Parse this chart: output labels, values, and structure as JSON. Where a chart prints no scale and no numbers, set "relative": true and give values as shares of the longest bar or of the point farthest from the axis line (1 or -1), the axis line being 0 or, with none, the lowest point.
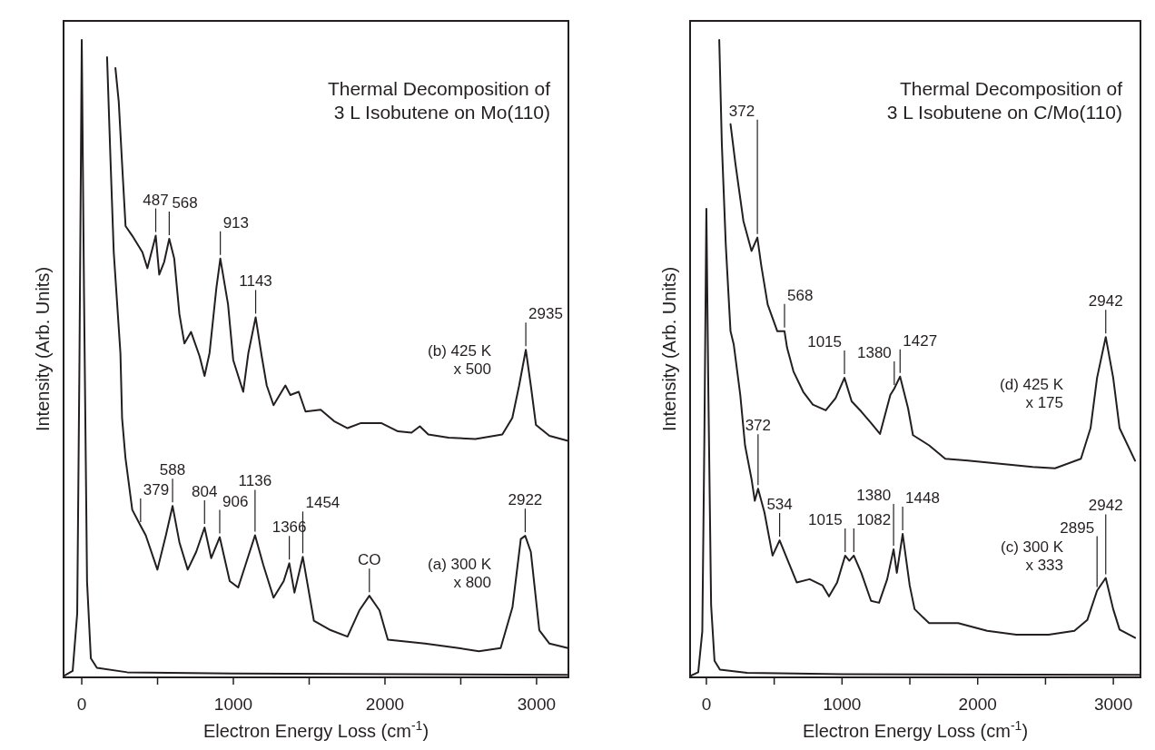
{
  "chart_data": [
    {
      "type": "line",
      "relative": true,
      "title": "Thermal Decomposition of\n3 L Isobutene on Mo(110)",
      "xlabel": "Electron Energy Loss (cm$^{-1}$)",
      "ylabel": "Intensity (Arb. Units)",
      "xlim": [
        -120,
        3210
      ],
      "xticks": [
        0,
        {
          "value": 500,
          "label": null
        },
        1000,
        {
          "value": 1500,
          "label": null
        },
        2000,
        {
          "value": 2500,
          "label": null
        },
        3000
      ],
      "series": [
        {
          "color": "#231f20",
          "x": [
            -120,
            -60,
            -30,
            -15,
            0,
            15,
            35,
            60,
            100,
            300,
            1000,
            3200
          ],
          "values": [
            0.002,
            0.01,
            0.1,
            0.5,
            1,
            0.6,
            0.15,
            0.03,
            0.015,
            0.008,
            0.006,
            0.004
          ]
        },
        {
          "name": "(a) 300 K\nx 800",
          "color": "#231f20",
          "x": [
            167,
            189,
            211,
            255,
            266,
            288,
            333,
            388,
            422,
            499,
            555,
            599,
            644,
            699,
            755,
            810,
            854,
            910,
            976,
            1032,
            1143,
            1198,
            1265,
            1332,
            1369,
            1403,
            1458,
            1531,
            1642,
            1753,
            1831,
            1897,
            1964,
            2019,
            2264,
            2486,
            2619,
            2763,
            2841,
            2896,
            2925,
            2962,
            3018,
            3085,
            3207
          ],
          "values": [
            0.973,
            0.816,
            0.667,
            0.509,
            0.407,
            0.345,
            0.263,
            0.238,
            0.223,
            0.169,
            0.223,
            0.269,
            0.212,
            0.169,
            0.197,
            0.235,
            0.187,
            0.22,
            0.151,
            0.141,
            0.223,
            0.176,
            0.125,
            0.151,
            0.179,
            0.133,
            0.189,
            0.089,
            0.074,
            0.064,
            0.105,
            0.128,
            0.105,
            0.059,
            0.053,
            0.046,
            0.041,
            0.046,
            0.11,
            0.217,
            0.222,
            0.197,
            0.074,
            0.053,
            0.046
          ]
        },
        {
          "name": "(b) 425 K\nx 500",
          "color": "#231f20",
          "x": [
            222,
            244,
            266,
            289,
            333,
            400,
            433,
            488,
            511,
            544,
            577,
            610,
            644,
            677,
            721,
            777,
            810,
            843,
            888,
            914,
            965,
            999,
            1065,
            1099,
            1147,
            1187,
            1220,
            1265,
            1343,
            1376,
            1431,
            1476,
            1576,
            1664,
            1753,
            1842,
            1975,
            2086,
            2175,
            2230,
            2286,
            2419,
            2596,
            2774,
            2840,
            2885,
            2929,
            2962,
            2996,
            3085,
            3207
          ],
          "values": [
            0.956,
            0.903,
            0.806,
            0.708,
            0.693,
            0.667,
            0.642,
            0.693,
            0.632,
            0.652,
            0.688,
            0.657,
            0.57,
            0.524,
            0.542,
            0.504,
            0.473,
            0.509,
            0.611,
            0.657,
            0.585,
            0.498,
            0.448,
            0.509,
            0.565,
            0.504,
            0.458,
            0.427,
            0.458,
            0.443,
            0.448,
            0.417,
            0.42,
            0.402,
            0.391,
            0.399,
            0.399,
            0.386,
            0.384,
            0.394,
            0.381,
            0.376,
            0.374,
            0.381,
            0.407,
            0.458,
            0.514,
            0.458,
            0.396,
            0.379,
            0.371
          ]
        }
      ],
      "annotations": [
        {
          "text": "487",
          "x": 488,
          "y": 0.693
        },
        {
          "text": "568",
          "x": 577,
          "y": 0.688
        },
        {
          "text": "913",
          "x": 914,
          "y": 0.657
        },
        {
          "text": "1143",
          "x": 1147,
          "y": 0.565
        },
        {
          "text": "2935",
          "x": 2929,
          "y": 0.514
        },
        {
          "text": "379",
          "x": 388,
          "y": 0.238
        },
        {
          "text": "588",
          "x": 599,
          "y": 0.269
        },
        {
          "text": "804",
          "x": 810,
          "y": 0.235
        },
        {
          "text": "906",
          "x": 910,
          "y": 0.22
        },
        {
          "text": "1136",
          "x": 1143,
          "y": 0.223
        },
        {
          "text": "1366",
          "x": 1369,
          "y": 0.179
        },
        {
          "text": "1454",
          "x": 1458,
          "y": 0.189
        },
        {
          "text": "CO",
          "x": 1897,
          "y": 0.128
        },
        {
          "text": "2922",
          "x": 2925,
          "y": 0.222
        }
      ]
    },
    {
      "type": "line",
      "relative": true,
      "title": "Thermal Decomposition of\n3 L Isobutene on C/Mo(110)",
      "xlabel": "Electron Energy Loss (cm$^{-1}$)",
      "ylabel": "Intensity (Arb. Units)",
      "xlim": [
        -120,
        3200
      ],
      "xticks": [
        0,
        {
          "value": 500,
          "label": null
        },
        1000,
        {
          "value": 1500,
          "label": null
        },
        2000,
        {
          "value": 2500,
          "label": null
        },
        3000
      ],
      "series": [
        {
          "color": "#231f20",
          "x": [
            -120,
            -60,
            -30,
            -15,
            0,
            15,
            35,
            60,
            100,
            300,
            1000,
            3200
          ],
          "values": [
            0.002,
            0.008,
            0.072,
            0.37,
            0.735,
            0.442,
            0.113,
            0.026,
            0.012,
            0.007,
            0.005,
            0.004
          ]
        },
        {
          "name": "(c) 300 K\nx 333",
          "color": "#231f20",
          "x": [
            95,
            114,
            143,
            178,
            202,
            250,
            285,
            333,
            357,
            381,
            428,
            488,
            540,
            595,
            666,
            761,
            857,
            904,
            964,
            1023,
            1054,
            1087,
            1142,
            1214,
            1273,
            1333,
            1380,
            1404,
            1447,
            1499,
            1535,
            1642,
            1856,
            2070,
            2285,
            2523,
            2713,
            2808,
            2880,
            2944,
            2999,
            3046,
            3160
          ],
          "values": [
            1,
            0.837,
            0.679,
            0.543,
            0.522,
            0.443,
            0.364,
            0.311,
            0.277,
            0.296,
            0.259,
            0.191,
            0.215,
            0.186,
            0.149,
            0.154,
            0.144,
            0.127,
            0.149,
            0.191,
            0.183,
            0.191,
            0.164,
            0.12,
            0.117,
            0.154,
            0.201,
            0.164,
            0.225,
            0.144,
            0.107,
            0.085,
            0.085,
            0.073,
            0.067,
            0.067,
            0.073,
            0.09,
            0.136,
            0.156,
            0.107,
            0.075,
            0.062
          ]
        },
        {
          "name": "(d) 425 K\nx 175",
          "color": "#231f20",
          "x": [
            178,
            214,
            273,
            333,
            376,
            404,
            452,
            523,
            576,
            595,
            642,
            714,
            785,
            880,
            952,
            1018,
            1071,
            1142,
            1214,
            1280,
            1356,
            1385,
            1428,
            1487,
            1523,
            1642,
            1761,
            1928,
            2166,
            2404,
            2570,
            2761,
            2832,
            2880,
            2944,
            2999,
            3046,
            3160
          ],
          "values": [
            0.868,
            0.806,
            0.716,
            0.669,
            0.69,
            0.647,
            0.585,
            0.543,
            0.543,
            0.517,
            0.48,
            0.448,
            0.428,
            0.419,
            0.438,
            0.47,
            0.433,
            0.417,
            0.399,
            0.382,
            0.443,
            0.453,
            0.472,
            0.422,
            0.38,
            0.364,
            0.343,
            0.34,
            0.335,
            0.33,
            0.328,
            0.343,
            0.391,
            0.47,
            0.534,
            0.47,
            0.391,
            0.34
          ]
        }
      ],
      "annotations": [
        {
          "text": "372",
          "x": 376,
          "y": 0.69
        },
        {
          "text": "568",
          "x": 576,
          "y": 0.543
        },
        {
          "text": "1015",
          "x": 1018,
          "y": 0.47
        },
        {
          "text": "1380",
          "x": 1385,
          "y": 0.453
        },
        {
          "text": "1427",
          "x": 1428,
          "y": 0.472
        },
        {
          "text": "2942",
          "x": 2944,
          "y": 0.534
        },
        {
          "text": "372",
          "x": 381,
          "y": 0.296
        },
        {
          "text": "534",
          "x": 540,
          "y": 0.215
        },
        {
          "text": "1015",
          "x": 1023,
          "y": 0.191
        },
        {
          "text": "1082",
          "x": 1087,
          "y": 0.191
        },
        {
          "text": "1380",
          "x": 1380,
          "y": 0.201
        },
        {
          "text": "1448",
          "x": 1447,
          "y": 0.225
        },
        {
          "text": "2895",
          "x": 2880,
          "y": 0.136
        },
        {
          "text": "2942",
          "x": 2944,
          "y": 0.156
        }
      ]
    }
  ]
}
